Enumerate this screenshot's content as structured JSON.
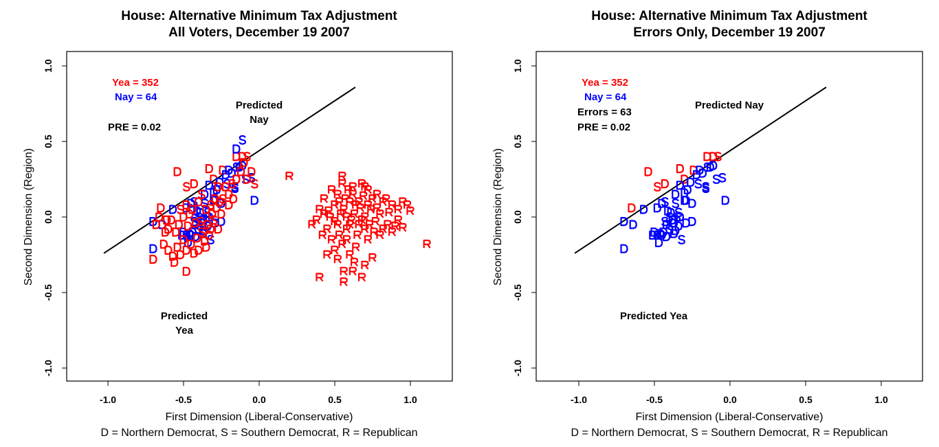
{
  "chart_data": {
    "type": "scatter",
    "colors": {
      "yea": "#ff0000",
      "nay": "#0000ff",
      "line": "#000000"
    },
    "xlim": [
      -1.3,
      1.3
    ],
    "ylim": [
      -1.09,
      1.09
    ],
    "ticks": [
      "-1.0",
      "-0.5",
      "0.0",
      "0.5",
      "1.0"
    ],
    "tick_values": [
      -1.0,
      -0.5,
      0.0,
      0.5,
      1.0
    ],
    "xlabel": "First Dimension (Liberal-Conservative)",
    "subtitle": "D = Northern Democrat, S = Southern Democrat, R = Republican",
    "ylabel": "Second Dimension (Region)",
    "cutting_line": [
      [
        -1.027,
        -0.24
      ],
      [
        0.636,
        0.859
      ]
    ],
    "panels": [
      {
        "title1": "House: Alternative Minimum Tax Adjustment",
        "title2": "All Voters, December 19 2007",
        "filter": "all",
        "yea": "Yea =  352",
        "nay": "Nay =  64",
        "pre": "PRE =  0.02",
        "predicted_nay": [
          "Predicted",
          "Nay"
        ],
        "predicted_yea": [
          "Predicted",
          "Yea"
        ]
      },
      {
        "title1": "House: Alternative Minimum Tax Adjustment",
        "title2": "Errors Only, December 19 2007",
        "filter": "errors",
        "yea": "Yea =  352",
        "nay": "Nay =  64",
        "errors": "Errors =  63",
        "pre": "PRE =  0.02",
        "predicted_nay": [
          "Predicted Nay"
        ],
        "predicted_yea": [
          "Predicted Yea"
        ]
      }
    ],
    "point_format": [
      "x",
      "y",
      "label",
      "vote (Y/N)",
      "error (1/0)"
    ],
    "voters": [
      [
        -0.54,
        0.3,
        "D",
        "Y",
        1
      ],
      [
        -0.33,
        0.32,
        "D",
        "Y",
        1
      ],
      [
        -0.65,
        0.06,
        "D",
        "Y",
        1
      ],
      [
        -0.48,
        0.2,
        "S",
        "Y",
        1
      ],
      [
        -0.43,
        0.22,
        "D",
        "Y",
        1
      ],
      [
        -0.3,
        0.25,
        "D",
        "Y",
        1
      ],
      [
        -0.24,
        0.31,
        "D",
        "Y",
        1
      ],
      [
        -0.15,
        0.4,
        "D",
        "Y",
        1
      ],
      [
        -0.11,
        0.4,
        "D",
        "Y",
        1
      ],
      [
        -0.08,
        0.4,
        "S",
        "Y",
        1
      ],
      [
        -0.7,
        -0.03,
        "D",
        "N",
        1
      ],
      [
        -0.64,
        -0.05,
        "D",
        "N",
        1
      ],
      [
        -0.57,
        0.05,
        "D",
        "N",
        1
      ],
      [
        -0.48,
        0.06,
        "D",
        "N",
        1
      ],
      [
        -0.45,
        0.09,
        "D",
        "N",
        1
      ],
      [
        -0.43,
        0.1,
        "S",
        "N",
        1
      ],
      [
        -0.36,
        0.09,
        "S",
        "N",
        1
      ],
      [
        -0.36,
        0.15,
        "D",
        "N",
        1
      ],
      [
        -0.33,
        0.21,
        "D",
        "N",
        1
      ],
      [
        -0.3,
        0.11,
        "D",
        "N",
        1
      ],
      [
        -0.29,
        0.11,
        "D",
        "N",
        1
      ],
      [
        -0.25,
        0.09,
        "D",
        "N",
        1
      ],
      [
        -0.28,
        0.18,
        "D",
        "N",
        1
      ],
      [
        -0.26,
        0.23,
        "D",
        "N",
        1
      ],
      [
        -0.22,
        0.28,
        "D",
        "N",
        1
      ],
      [
        -0.21,
        0.22,
        "S",
        "N",
        1
      ],
      [
        -0.2,
        0.31,
        "D",
        "N",
        1
      ],
      [
        -0.18,
        0.29,
        "D",
        "N",
        1
      ],
      [
        -0.15,
        0.33,
        "S",
        "N",
        1
      ],
      [
        -0.11,
        0.34,
        "D",
        "N",
        1
      ],
      [
        -0.09,
        0.25,
        "S",
        "N",
        1
      ],
      [
        -0.05,
        0.26,
        "S",
        "N",
        1
      ],
      [
        -0.16,
        0.2,
        "S",
        "N",
        1
      ],
      [
        -0.16,
        0.19,
        "S",
        "N",
        1
      ],
      [
        -0.03,
        0.11,
        "D",
        "N",
        1
      ],
      [
        -0.39,
        0.03,
        "D",
        "N",
        1
      ],
      [
        -0.34,
        0.03,
        "S",
        "N",
        1
      ],
      [
        -0.33,
        0.0,
        "D",
        "N",
        1
      ],
      [
        -0.4,
        0.0,
        "S",
        "N",
        1
      ],
      [
        -0.43,
        -0.03,
        "S",
        "N",
        1
      ],
      [
        -0.42,
        -0.05,
        "D",
        "N",
        1
      ],
      [
        -0.37,
        -0.04,
        "D",
        "N",
        1
      ],
      [
        -0.34,
        -0.06,
        "D",
        "N",
        1
      ],
      [
        -0.29,
        -0.04,
        "D",
        "N",
        1
      ],
      [
        -0.25,
        -0.03,
        "D",
        "N",
        1
      ],
      [
        -0.36,
        -0.09,
        "D",
        "N",
        1
      ],
      [
        -0.5,
        -0.1,
        "D",
        "N",
        1
      ],
      [
        -0.51,
        -0.12,
        "D",
        "N",
        1
      ],
      [
        -0.48,
        -0.12,
        "D",
        "N",
        1
      ],
      [
        -0.45,
        -0.12,
        "D",
        "N",
        1
      ],
      [
        -0.42,
        -0.13,
        "D",
        "N",
        1
      ],
      [
        -0.47,
        -0.17,
        "D",
        "N",
        1
      ],
      [
        -0.32,
        -0.15,
        "S",
        "N",
        1
      ],
      [
        -0.7,
        -0.21,
        "D",
        "N",
        1
      ],
      [
        -0.44,
        -0.1,
        "D",
        "N",
        1
      ],
      [
        -0.13,
        0.33,
        "D",
        "N",
        1
      ],
      [
        -0.46,
        -0.11,
        "D",
        "N",
        1
      ],
      [
        -0.4,
        -0.08,
        "S",
        "N",
        1
      ],
      [
        -0.38,
        -0.02,
        "D",
        "N",
        1
      ],
      [
        -0.35,
        0.0,
        "S",
        "N",
        1
      ],
      [
        -0.41,
        0.04,
        "D",
        "N",
        1
      ],
      [
        -0.37,
        -0.11,
        "D",
        "N",
        1
      ],
      [
        -0.3,
        0.16,
        "D",
        "N",
        1
      ],
      [
        -0.15,
        0.45,
        "D",
        "N",
        0
      ],
      [
        -0.11,
        0.51,
        "S",
        "N",
        0
      ],
      [
        -0.7,
        -0.28,
        "D",
        "Y",
        0
      ],
      [
        -0.63,
        -0.18,
        "D",
        "Y",
        0
      ],
      [
        -0.6,
        -0.08,
        "D",
        "Y",
        0
      ],
      [
        -0.58,
        -0.02,
        "D",
        "Y",
        0
      ],
      [
        -0.55,
        -0.1,
        "D",
        "Y",
        0
      ],
      [
        -0.54,
        -0.2,
        "D",
        "Y",
        0
      ],
      [
        -0.52,
        -0.25,
        "D",
        "Y",
        0
      ],
      [
        -0.56,
        -0.3,
        "D",
        "Y",
        0
      ],
      [
        -0.5,
        -0.15,
        "D",
        "Y",
        0
      ],
      [
        -0.48,
        -0.22,
        "D",
        "Y",
        0
      ],
      [
        -0.47,
        -0.06,
        "D",
        "Y",
        0
      ],
      [
        -0.45,
        -0.18,
        "D",
        "Y",
        0
      ],
      [
        -0.43,
        -0.24,
        "D",
        "Y",
        0
      ],
      [
        -0.4,
        -0.22,
        "D",
        "Y",
        0
      ],
      [
        -0.41,
        -0.14,
        "D",
        "Y",
        0
      ],
      [
        -0.38,
        -0.1,
        "S",
        "Y",
        0
      ],
      [
        -0.36,
        -0.16,
        "D",
        "Y",
        0
      ],
      [
        -0.34,
        -0.05,
        "D",
        "Y",
        0
      ],
      [
        -0.33,
        -0.12,
        "D",
        "Y",
        0
      ],
      [
        -0.31,
        0.02,
        "D",
        "Y",
        0
      ],
      [
        -0.3,
        -0.02,
        "S",
        "Y",
        0
      ],
      [
        -0.28,
        0.06,
        "D",
        "Y",
        0
      ],
      [
        -0.27,
        -0.08,
        "D",
        "Y",
        0
      ],
      [
        -0.26,
        0.1,
        "D",
        "Y",
        0
      ],
      [
        -0.25,
        0.02,
        "D",
        "Y",
        0
      ],
      [
        -0.35,
        0.05,
        "D",
        "Y",
        0
      ],
      [
        -0.32,
        0.08,
        "S",
        "Y",
        0
      ],
      [
        -0.29,
        0.12,
        "D",
        "Y",
        0
      ],
      [
        -0.4,
        0.1,
        "D",
        "Y",
        0
      ],
      [
        -0.44,
        0.05,
        "D",
        "Y",
        0
      ],
      [
        -0.38,
        0.15,
        "S",
        "Y",
        0
      ],
      [
        -0.22,
        0.2,
        "D",
        "Y",
        0
      ],
      [
        -0.2,
        0.15,
        "D",
        "Y",
        0
      ],
      [
        -0.18,
        0.22,
        "S",
        "Y",
        0
      ],
      [
        -0.15,
        0.25,
        "D",
        "Y",
        0
      ],
      [
        -0.12,
        0.3,
        "D",
        "Y",
        0
      ],
      [
        -0.1,
        0.36,
        "D",
        "Y",
        0
      ],
      [
        -0.05,
        0.3,
        "D",
        "Y",
        0
      ],
      [
        -0.03,
        0.22,
        "S",
        "Y",
        0
      ],
      [
        -0.08,
        0.25,
        "D",
        "Y",
        0
      ],
      [
        -0.62,
        -0.1,
        "D",
        "Y",
        0
      ],
      [
        -0.66,
        0.0,
        "D",
        "Y",
        0
      ],
      [
        -0.68,
        -0.05,
        "D",
        "Y",
        0
      ],
      [
        -0.6,
        -0.22,
        "D",
        "Y",
        0
      ],
      [
        -0.57,
        -0.26,
        "D",
        "Y",
        0
      ],
      [
        -0.53,
        -0.05,
        "D",
        "Y",
        0
      ],
      [
        -0.5,
        0.0,
        "D",
        "Y",
        0
      ],
      [
        -0.46,
        0.02,
        "D",
        "Y",
        0
      ],
      [
        -0.42,
        -0.04,
        "D",
        "Y",
        0
      ],
      [
        -0.39,
        -0.03,
        "S",
        "Y",
        0
      ],
      [
        -0.35,
        -0.2,
        "D",
        "Y",
        0
      ],
      [
        -0.32,
        -0.08,
        "D",
        "Y",
        0
      ],
      [
        -0.48,
        -0.36,
        "D",
        "Y",
        0
      ],
      [
        -0.61,
        -0.02,
        "D",
        "Y",
        0
      ],
      [
        -0.24,
        0.12,
        "S",
        "Y",
        0
      ],
      [
        -0.2,
        0.08,
        "D",
        "Y",
        0
      ],
      [
        -0.48,
        0.08,
        "D",
        "Y",
        0
      ],
      [
        -0.52,
        0.05,
        "S",
        "Y",
        0
      ],
      [
        -0.27,
        0.2,
        "D",
        "Y",
        0
      ],
      [
        -0.17,
        0.12,
        "D",
        "Y",
        0
      ],
      [
        0.2,
        0.27,
        "R",
        "Y",
        0
      ],
      [
        0.55,
        0.27,
        "R",
        "Y",
        0
      ],
      [
        1.11,
        -0.18,
        "R",
        "Y",
        0
      ],
      [
        0.4,
        -0.4,
        "R",
        "Y",
        0
      ],
      [
        0.56,
        -0.43,
        "R",
        "Y",
        0
      ],
      [
        0.56,
        -0.36,
        "R",
        "Y",
        0
      ],
      [
        0.62,
        -0.36,
        "R",
        "Y",
        0
      ],
      [
        0.68,
        -0.4,
        "R",
        "Y",
        0
      ],
      [
        0.7,
        -0.32,
        "R",
        "Y",
        0
      ],
      [
        0.75,
        -0.27,
        "R",
        "Y",
        0
      ],
      [
        0.6,
        -0.25,
        "R",
        "Y",
        0
      ],
      [
        0.55,
        -0.18,
        "R",
        "Y",
        0
      ],
      [
        0.5,
        -0.22,
        "R",
        "Y",
        0
      ],
      [
        0.45,
        -0.25,
        "R",
        "Y",
        0
      ],
      [
        0.42,
        -0.12,
        "R",
        "Y",
        0
      ],
      [
        0.38,
        -0.02,
        "R",
        "Y",
        0
      ],
      [
        0.4,
        0.05,
        "R",
        "Y",
        0
      ],
      [
        0.43,
        0.12,
        "R",
        "Y",
        0
      ],
      [
        0.48,
        0.18,
        "R",
        "Y",
        0
      ],
      [
        0.52,
        0.15,
        "R",
        "Y",
        0
      ],
      [
        0.55,
        0.22,
        "R",
        "Y",
        0
      ],
      [
        0.62,
        0.2,
        "R",
        "Y",
        0
      ],
      [
        0.68,
        0.22,
        "R",
        "Y",
        0
      ],
      [
        0.72,
        0.18,
        "R",
        "Y",
        0
      ],
      [
        0.78,
        0.15,
        "R",
        "Y",
        0
      ],
      [
        0.82,
        0.1,
        "R",
        "Y",
        0
      ],
      [
        0.88,
        0.08,
        "R",
        "Y",
        0
      ],
      [
        0.92,
        0.05,
        "R",
        "Y",
        0
      ],
      [
        0.98,
        0.08,
        "R",
        "Y",
        0
      ],
      [
        1.0,
        0.04,
        "R",
        "Y",
        0
      ],
      [
        0.95,
        -0.07,
        "R",
        "Y",
        0
      ],
      [
        0.85,
        -0.05,
        "R",
        "Y",
        0
      ],
      [
        0.8,
        -0.12,
        "R",
        "Y",
        0
      ],
      [
        0.72,
        -0.15,
        "R",
        "Y",
        0
      ],
      [
        0.65,
        -0.12,
        "R",
        "Y",
        0
      ],
      [
        0.58,
        -0.08,
        "R",
        "Y",
        0
      ],
      [
        0.52,
        -0.05,
        "R",
        "Y",
        0
      ],
      [
        0.47,
        0.0,
        "R",
        "Y",
        0
      ],
      [
        0.5,
        0.08,
        "R",
        "Y",
        0
      ],
      [
        0.56,
        0.05,
        "R",
        "Y",
        0
      ],
      [
        0.6,
        0.1,
        "R",
        "Y",
        0
      ],
      [
        0.63,
        0.02,
        "R",
        "Y",
        0
      ],
      [
        0.67,
        0.06,
        "R",
        "Y",
        0
      ],
      [
        0.7,
        0.0,
        "R",
        "Y",
        0
      ],
      [
        0.74,
        0.05,
        "R",
        "Y",
        0
      ],
      [
        0.77,
        -0.03,
        "R",
        "Y",
        0
      ],
      [
        0.8,
        0.02,
        "R",
        "Y",
        0
      ],
      [
        0.84,
        0.12,
        "R",
        "Y",
        0
      ],
      [
        0.88,
        -0.1,
        "R",
        "Y",
        0
      ],
      [
        0.92,
        -0.02,
        "R",
        "Y",
        0
      ],
      [
        0.66,
        -0.05,
        "R",
        "Y",
        0
      ],
      [
        0.61,
        -0.02,
        "R",
        "Y",
        0
      ],
      [
        0.57,
        0.12,
        "R",
        "Y",
        0
      ],
      [
        0.53,
        0.1,
        "R",
        "Y",
        0
      ],
      [
        0.45,
        -0.08,
        "R",
        "Y",
        0
      ],
      [
        0.43,
        0.02,
        "R",
        "Y",
        0
      ],
      [
        0.48,
        -0.15,
        "R",
        "Y",
        0
      ],
      [
        0.53,
        -0.12,
        "R",
        "Y",
        0
      ],
      [
        0.58,
        -0.15,
        "R",
        "Y",
        0
      ],
      [
        0.64,
        -0.2,
        "R",
        "Y",
        0
      ],
      [
        0.7,
        -0.08,
        "R",
        "Y",
        0
      ],
      [
        0.75,
        0.12,
        "R",
        "Y",
        0
      ],
      [
        0.69,
        0.14,
        "R",
        "Y",
        0
      ],
      [
        0.62,
        0.15,
        "R",
        "Y",
        0
      ],
      [
        0.58,
        0.0,
        "R",
        "Y",
        0
      ],
      [
        0.54,
        0.02,
        "R",
        "Y",
        0
      ],
      [
        0.5,
        -0.03,
        "R",
        "Y",
        0
      ],
      [
        0.66,
        0.1,
        "R",
        "Y",
        0
      ],
      [
        0.72,
        0.08,
        "R",
        "Y",
        0
      ],
      [
        0.78,
        0.06,
        "R",
        "Y",
        0
      ],
      [
        0.82,
        -0.08,
        "R",
        "Y",
        0
      ],
      [
        0.86,
        0.03,
        "R",
        "Y",
        0
      ],
      [
        0.6,
        -0.05,
        "R",
        "Y",
        0
      ],
      [
        0.64,
        0.08,
        "R",
        "Y",
        0
      ],
      [
        0.68,
        -0.02,
        "R",
        "Y",
        0
      ],
      [
        0.73,
        -0.05,
        "R",
        "Y",
        0
      ],
      [
        0.76,
        -0.1,
        "R",
        "Y",
        0
      ],
      [
        0.52,
        -0.28,
        "R",
        "Y",
        0
      ],
      [
        0.63,
        -0.3,
        "R",
        "Y",
        0
      ],
      [
        0.46,
        0.04,
        "R",
        "Y",
        0
      ],
      [
        0.35,
        -0.05,
        "R",
        "Y",
        0
      ],
      [
        0.95,
        0.1,
        "R",
        "Y",
        0
      ],
      [
        0.9,
        -0.06,
        "R",
        "Y",
        0
      ],
      [
        0.7,
        0.2,
        "R",
        "Y",
        0
      ],
      [
        0.59,
        0.18,
        "R",
        "Y",
        0
      ]
    ]
  }
}
